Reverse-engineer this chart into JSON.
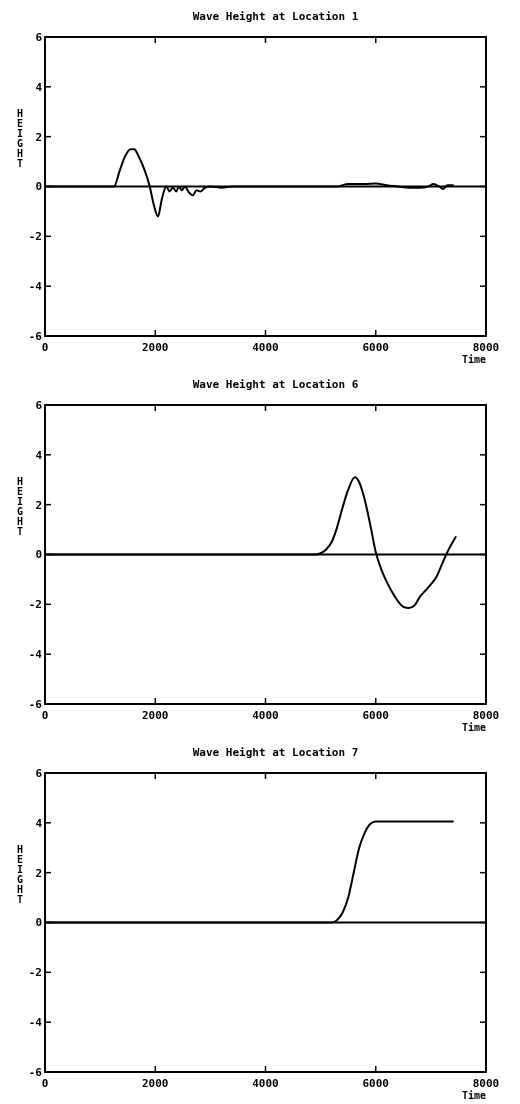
{
  "chart_data": [
    {
      "type": "line",
      "title": "Wave Height at Location 1",
      "xlabel": "Time",
      "ylabel": "HEIGHT",
      "color": "#000000",
      "x": [
        0,
        1250,
        1350,
        1450,
        1550,
        1620,
        1700,
        1800,
        1900,
        1970,
        2050,
        2120,
        2200,
        2260,
        2320,
        2380,
        2430,
        2480,
        2540,
        2600,
        2680,
        2750,
        2820,
        2900,
        3000,
        3200,
        3400,
        4000,
        4500,
        5000,
        5300,
        5500,
        5800,
        6000,
        6200,
        6400,
        6600,
        6800,
        6950,
        7050,
        7150,
        7220,
        7300,
        7400
      ],
      "values": [
        0,
        0,
        0.6,
        1.2,
        1.5,
        1.5,
        1.2,
        0.7,
        0,
        -0.7,
        -1.2,
        -0.5,
        0,
        -0.2,
        -0.05,
        -0.2,
        0,
        -0.15,
        0,
        -0.2,
        -0.35,
        -0.15,
        -0.2,
        -0.05,
        0,
        -0.05,
        0,
        0,
        0,
        0,
        0,
        0.1,
        0.1,
        0.12,
        0.05,
        0,
        -0.05,
        -0.05,
        0,
        0.1,
        0,
        -0.1,
        0.05,
        0.05
      ],
      "xlim": [
        0,
        8000
      ],
      "ylim": [
        -6,
        6
      ],
      "xticks": [
        0,
        2000,
        4000,
        6000,
        8000
      ],
      "yticks": [
        -6,
        -4,
        -2,
        0,
        2,
        4,
        6
      ],
      "ref_lines": [
        {
          "axis": "y",
          "value": 0
        }
      ]
    },
    {
      "type": "line",
      "title": "Wave Height at Location 6",
      "xlabel": "Time",
      "ylabel": "HEIGHT",
      "color": "#000000",
      "x": [
        0,
        4900,
        5000,
        5100,
        5200,
        5300,
        5400,
        5500,
        5620,
        5700,
        5800,
        5900,
        6000,
        6100,
        6200,
        6350,
        6500,
        6600,
        6700,
        6800,
        6900,
        7000,
        7100,
        7200,
        7300,
        7450
      ],
      "values": [
        0,
        0,
        0.05,
        0.2,
        0.5,
        1.1,
        1.9,
        2.6,
        3.1,
        2.9,
        2.2,
        1.2,
        0.1,
        -0.6,
        -1.1,
        -1.7,
        -2.1,
        -2.15,
        -2.05,
        -1.7,
        -1.45,
        -1.2,
        -0.9,
        -0.4,
        0.1,
        0.7
      ],
      "xlim": [
        0,
        8000
      ],
      "ylim": [
        -6,
        6
      ],
      "xticks": [
        0,
        2000,
        4000,
        6000,
        8000
      ],
      "yticks": [
        -6,
        -4,
        -2,
        0,
        2,
        4,
        6
      ],
      "ref_lines": [
        {
          "axis": "y",
          "value": 0
        }
      ]
    },
    {
      "type": "line",
      "title": "Wave Height at Location 7",
      "xlabel": "Time",
      "ylabel": "HEIGHT",
      "color": "#000000",
      "x": [
        0,
        5200,
        5300,
        5400,
        5500,
        5600,
        5700,
        5800,
        5900,
        6000,
        6500,
        7000,
        7400
      ],
      "values": [
        0,
        0,
        0.1,
        0.4,
        1.0,
        2.0,
        3.0,
        3.6,
        3.95,
        4.05,
        4.05,
        4.05,
        4.05
      ],
      "xlim": [
        0,
        8000
      ],
      "ylim": [
        -6,
        6
      ],
      "xticks": [
        0,
        2000,
        4000,
        6000,
        8000
      ],
      "yticks": [
        -6,
        -4,
        -2,
        0,
        2,
        4,
        6
      ],
      "ref_lines": [
        {
          "axis": "y",
          "value": 0
        }
      ]
    }
  ]
}
